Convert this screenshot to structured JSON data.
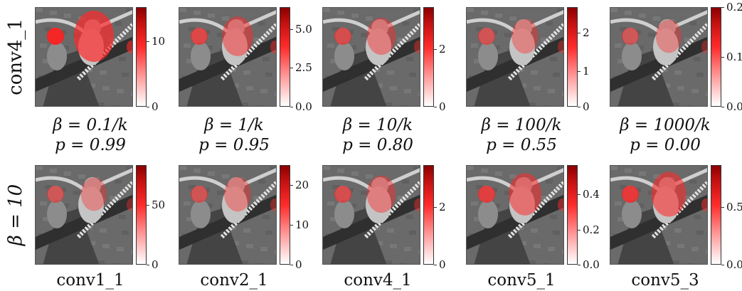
{
  "figure": {
    "row_labels": [
      "conv4_1",
      "β = 10"
    ],
    "rows": [
      {
        "panels": [
          {
            "caption_line1": "β = 0.1/k",
            "caption_line2": "p = 0.99",
            "ticks": [
              {
                "label": "0",
                "frac": 0.0
              },
              {
                "label": "10",
                "frac": 0.66
              }
            ],
            "intensity": 1.0
          },
          {
            "caption_line1": "β = 1/k",
            "caption_line2": "p = 0.95",
            "ticks": [
              {
                "label": "0.0",
                "frac": 0.0
              },
              {
                "label": "2.5",
                "frac": 0.39
              },
              {
                "label": "5.0",
                "frac": 0.78
              }
            ],
            "intensity": 0.55
          },
          {
            "caption_line1": "β = 10/k",
            "caption_line2": "p = 0.80",
            "ticks": [
              {
                "label": "0",
                "frac": 0.0
              },
              {
                "label": "2",
                "frac": 0.58
              }
            ],
            "intensity": 0.45
          },
          {
            "caption_line1": "β = 100/k",
            "caption_line2": "p = 0.55",
            "ticks": [
              {
                "label": "0",
                "frac": 0.0
              },
              {
                "label": "1",
                "frac": 0.36
              },
              {
                "label": "2",
                "frac": 0.74
              }
            ],
            "intensity": 0.35
          },
          {
            "caption_line1": "β = 1000/k",
            "caption_line2": "p = 0.00",
            "ticks": [
              {
                "label": "0.0",
                "frac": 0.0
              },
              {
                "label": "0.1",
                "frac": 0.5
              },
              {
                "label": "0.2",
                "frac": 1.0
              }
            ],
            "intensity": 0.3
          }
        ]
      },
      {
        "panels": [
          {
            "caption_line1": "conv1_1",
            "caption_line2": "",
            "ticks": [
              {
                "label": "0",
                "frac": 0.0
              },
              {
                "label": "50",
                "frac": 0.6
              }
            ],
            "intensity": 0.3
          },
          {
            "caption_line1": "conv2_1",
            "caption_line2": "",
            "ticks": [
              {
                "label": "0",
                "frac": 0.0
              },
              {
                "label": "10",
                "frac": 0.4
              },
              {
                "label": "20",
                "frac": 0.8
              }
            ],
            "intensity": 0.35
          },
          {
            "caption_line1": "conv4_1",
            "caption_line2": "",
            "ticks": [
              {
                "label": "0",
                "frac": 0.0
              },
              {
                "label": "2",
                "frac": 0.58
              }
            ],
            "intensity": 0.45
          },
          {
            "caption_line1": "conv5_1",
            "caption_line2": "",
            "ticks": [
              {
                "label": "0.0",
                "frac": 0.0
              },
              {
                "label": "0.2",
                "frac": 0.35
              },
              {
                "label": "0.4",
                "frac": 0.71
              }
            ],
            "intensity": 0.65
          },
          {
            "caption_line1": "conv5_3",
            "caption_line2": "",
            "ticks": [
              {
                "label": "0.0",
                "frac": 0.0
              },
              {
                "label": "0.5",
                "frac": 0.58
              }
            ],
            "intensity": 0.75
          }
        ]
      }
    ]
  }
}
